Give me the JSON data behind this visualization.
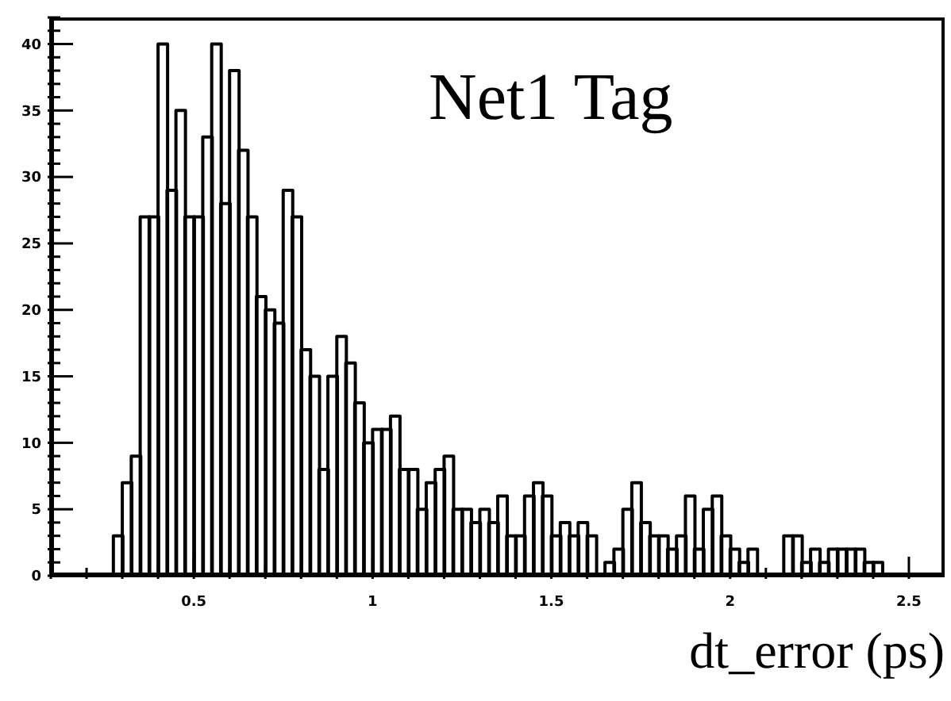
{
  "chart_data": {
    "type": "histogram",
    "title": "Net1 Tag",
    "xlabel": "dt_error (ps)",
    "color": "#000000",
    "bins": [
      0.1,
      0.125,
      0.15,
      0.175,
      0.2,
      0.225,
      0.25,
      0.275,
      0.3,
      0.325,
      0.35,
      0.375,
      0.4,
      0.425,
      0.45,
      0.475,
      0.5,
      0.525,
      0.55,
      0.575,
      0.6,
      0.625,
      0.65,
      0.675,
      0.7,
      0.725,
      0.75,
      0.775,
      0.8,
      0.825,
      0.85,
      0.875,
      0.9,
      0.925,
      0.95,
      0.975,
      1.0,
      1.025,
      1.05,
      1.075,
      1.1,
      1.125,
      1.15,
      1.175,
      1.2,
      1.225,
      1.25,
      1.275,
      1.3,
      1.325,
      1.35,
      1.375,
      1.4,
      1.425,
      1.45,
      1.475,
      1.5,
      1.525,
      1.55,
      1.575,
      1.6,
      1.625,
      1.65,
      1.675,
      1.7,
      1.725,
      1.75,
      1.775,
      1.8,
      1.825,
      1.85,
      1.875,
      1.9,
      1.925,
      1.95,
      1.975,
      2.0,
      2.025,
      2.05,
      2.075,
      2.1,
      2.125,
      2.15,
      2.175,
      2.2,
      2.225,
      2.25,
      2.275,
      2.3,
      2.325,
      2.35,
      2.375,
      2.4,
      2.425,
      2.45,
      2.475,
      2.5,
      2.525,
      2.55,
      2.575,
      2.6
    ],
    "values": [
      0,
      0,
      0,
      0,
      0,
      0,
      0,
      3,
      7,
      9,
      27,
      27,
      40,
      29,
      35,
      27,
      27,
      33,
      40,
      28,
      38,
      32,
      27,
      21,
      20,
      19,
      29,
      27,
      17,
      15,
      8,
      15,
      18,
      16,
      13,
      10,
      11,
      11,
      12,
      8,
      8,
      5,
      7,
      8,
      9,
      5,
      5,
      4,
      5,
      4,
      6,
      3,
      3,
      6,
      7,
      6,
      3,
      4,
      3,
      4,
      3,
      0,
      1,
      2,
      5,
      7,
      4,
      3,
      3,
      2,
      3,
      6,
      2,
      5,
      6,
      3,
      2,
      1,
      2,
      0,
      0,
      0,
      3,
      3,
      1,
      2,
      1,
      2,
      2,
      2,
      2,
      1,
      1,
      0,
      0,
      0,
      0,
      0,
      0,
      0
    ],
    "xlim": [
      0.1,
      2.6
    ],
    "xticks": [
      {
        "value": 0.1,
        "label": null
      },
      {
        "value": 0.2,
        "label": null
      },
      {
        "value": 0.3,
        "label": null
      },
      {
        "value": 0.4,
        "label": null
      },
      0.5,
      {
        "value": 0.6,
        "label": null
      },
      {
        "value": 0.7,
        "label": null
      },
      {
        "value": 0.8,
        "label": null
      },
      {
        "value": 0.9,
        "label": null
      },
      1,
      {
        "value": 1.1,
        "label": null
      },
      {
        "value": 1.2,
        "label": null
      },
      {
        "value": 1.3,
        "label": null
      },
      {
        "value": 1.4,
        "label": null
      },
      1.5,
      {
        "value": 1.6,
        "label": null
      },
      {
        "value": 1.7,
        "label": null
      },
      {
        "value": 1.8,
        "label": null
      },
      {
        "value": 1.9,
        "label": null
      },
      2,
      {
        "value": 2.1,
        "label": null
      },
      {
        "value": 2.2,
        "label": null
      },
      {
        "value": 2.3,
        "label": null
      },
      {
        "value": 2.4,
        "label": null
      },
      2.5
    ],
    "ylim": [
      0,
      42
    ],
    "yticks": [
      0,
      {
        "value": 1,
        "label": null
      },
      {
        "value": 2,
        "label": null
      },
      {
        "value": 3,
        "label": null
      },
      {
        "value": 4,
        "label": null
      },
      5,
      {
        "value": 6,
        "label": null
      },
      {
        "value": 7,
        "label": null
      },
      {
        "value": 8,
        "label": null
      },
      {
        "value": 9,
        "label": null
      },
      10,
      {
        "value": 11,
        "label": null
      },
      {
        "value": 12,
        "label": null
      },
      {
        "value": 13,
        "label": null
      },
      {
        "value": 14,
        "label": null
      },
      15,
      {
        "value": 16,
        "label": null
      },
      {
        "value": 17,
        "label": null
      },
      {
        "value": 18,
        "label": null
      },
      {
        "value": 19,
        "label": null
      },
      20,
      {
        "value": 21,
        "label": null
      },
      {
        "value": 22,
        "label": null
      },
      {
        "value": 23,
        "label": null
      },
      {
        "value": 24,
        "label": null
      },
      25,
      {
        "value": 26,
        "label": null
      },
      {
        "value": 27,
        "label": null
      },
      {
        "value": 28,
        "label": null
      },
      {
        "value": 29,
        "label": null
      },
      30,
      {
        "value": 31,
        "label": null
      },
      {
        "value": 32,
        "label": null
      },
      {
        "value": 33,
        "label": null
      },
      {
        "value": 34,
        "label": null
      },
      35,
      {
        "value": 36,
        "label": null
      },
      {
        "value": 37,
        "label": null
      },
      {
        "value": 38,
        "label": null
      },
      {
        "value": 39,
        "label": null
      },
      40,
      {
        "value": 41,
        "label": null
      },
      {
        "value": 42,
        "label": null
      }
    ]
  }
}
